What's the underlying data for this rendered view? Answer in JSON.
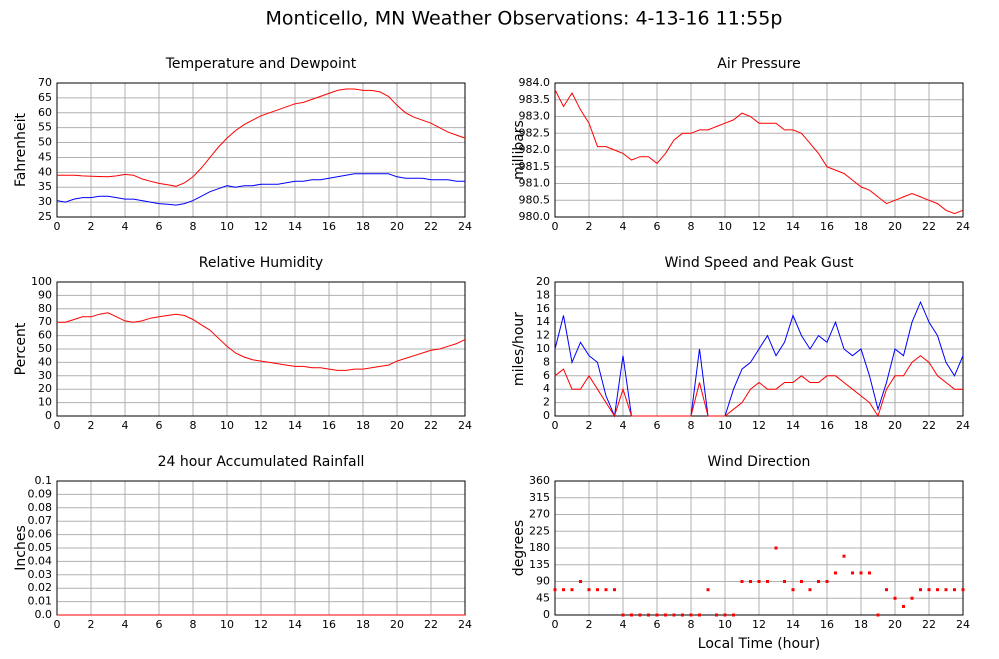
{
  "title": "Monticello, MN Weather Observations: 4-13-16 11:55p",
  "chart_data": [
    {
      "type": "line",
      "title": "Temperature and Dewpoint",
      "ylabel": "Fahrenheit",
      "x": [
        0,
        0.5,
        1,
        1.5,
        2,
        2.5,
        3,
        3.5,
        4,
        4.5,
        5,
        5.5,
        6,
        6.5,
        7,
        7.5,
        8,
        8.5,
        9,
        9.5,
        10,
        10.5,
        11,
        11.5,
        12,
        12.5,
        13,
        13.5,
        14,
        14.5,
        15,
        15.5,
        16,
        16.5,
        17,
        17.5,
        18,
        18.5,
        19,
        19.5,
        20,
        20.5,
        21,
        21.5,
        22,
        22.5,
        23,
        23.5,
        24
      ],
      "series": [
        {
          "color": "#ff0000",
          "values": [
            39,
            39,
            39,
            38.8,
            38.7,
            38.6,
            38.5,
            38.8,
            39.3,
            39,
            37.8,
            37,
            36.3,
            35.8,
            35.3,
            36.5,
            38.5,
            41.5,
            45,
            48.5,
            51.5,
            54,
            56,
            57.5,
            59,
            60,
            61,
            62,
            63,
            63.5,
            64.5,
            65.5,
            66.5,
            67.5,
            68,
            68,
            67.5,
            67.5,
            67,
            65.5,
            62.5,
            60,
            58.5,
            57.5,
            56.5,
            55,
            53.5,
            52.5,
            51.5
          ]
        },
        {
          "color": "#0000ff",
          "values": [
            30.5,
            30,
            31,
            31.5,
            31.5,
            32,
            32,
            31.5,
            31,
            31,
            30.5,
            30,
            29.5,
            29.3,
            29,
            29.5,
            30.5,
            32,
            33.5,
            34.5,
            35.5,
            35,
            35.5,
            35.5,
            36,
            36,
            36,
            36.5,
            37,
            37,
            37.5,
            37.5,
            38,
            38.5,
            39,
            39.5,
            39.5,
            39.5,
            39.5,
            39.5,
            38.5,
            38,
            38,
            38,
            37.5,
            37.5,
            37.5,
            37,
            37
          ]
        }
      ],
      "xlim": [
        0,
        24
      ],
      "xticks": [
        0,
        2,
        4,
        6,
        8,
        10,
        12,
        14,
        16,
        18,
        20,
        22,
        24
      ],
      "ylim": [
        25,
        70
      ],
      "yticks": [
        25,
        30,
        35,
        40,
        45,
        50,
        55,
        60,
        65,
        70
      ],
      "grid": true
    },
    {
      "type": "line",
      "title": "Air Pressure",
      "ylabel": "millibars",
      "x": [
        0,
        0.5,
        1,
        1.5,
        2,
        2.5,
        3,
        3.5,
        4,
        4.5,
        5,
        5.5,
        6,
        6.5,
        7,
        7.5,
        8,
        8.5,
        9,
        9.5,
        10,
        10.5,
        11,
        11.5,
        12,
        12.5,
        13,
        13.5,
        14,
        14.5,
        15,
        15.5,
        16,
        16.5,
        17,
        17.5,
        18,
        18.5,
        19,
        19.5,
        20,
        20.5,
        21,
        21.5,
        22,
        22.5,
        23,
        23.5,
        24
      ],
      "series": [
        {
          "color": "#ff0000",
          "values": [
            983.8,
            983.3,
            983.7,
            983.2,
            982.8,
            982.1,
            982.1,
            982.0,
            981.9,
            981.7,
            981.8,
            981.8,
            981.6,
            981.9,
            982.3,
            982.5,
            982.5,
            982.6,
            982.6,
            982.7,
            982.8,
            982.9,
            983.1,
            983.0,
            982.8,
            982.8,
            982.8,
            982.6,
            982.6,
            982.5,
            982.2,
            981.9,
            981.5,
            981.4,
            981.3,
            981.1,
            980.9,
            980.8,
            980.6,
            980.4,
            980.5,
            980.6,
            980.7,
            980.6,
            980.5,
            980.4,
            980.2,
            980.1,
            980.2
          ]
        }
      ],
      "xlim": [
        0,
        24
      ],
      "xticks": [
        0,
        2,
        4,
        6,
        8,
        10,
        12,
        14,
        16,
        18,
        20,
        22,
        24
      ],
      "ylim": [
        980,
        984
      ],
      "yticks": [
        {
          "value": 980,
          "label": "980.0"
        },
        980.5,
        {
          "value": 981,
          "label": "981.0"
        },
        981.5,
        {
          "value": 982,
          "label": "982.0"
        },
        982.5,
        {
          "value": 983,
          "label": "983.0"
        },
        983.5,
        {
          "value": 984,
          "label": "984.0"
        }
      ],
      "grid": true
    },
    {
      "type": "line",
      "title": "Relative Humidity",
      "ylabel": "Percent",
      "x": [
        0,
        0.5,
        1,
        1.5,
        2,
        2.5,
        3,
        3.5,
        4,
        4.5,
        5,
        5.5,
        6,
        6.5,
        7,
        7.5,
        8,
        8.5,
        9,
        9.5,
        10,
        10.5,
        11,
        11.5,
        12,
        12.5,
        13,
        13.5,
        14,
        14.5,
        15,
        15.5,
        16,
        16.5,
        17,
        17.5,
        18,
        18.5,
        19,
        19.5,
        20,
        20.5,
        21,
        21.5,
        22,
        22.5,
        23,
        23.5,
        24
      ],
      "series": [
        {
          "color": "#ff0000",
          "values": [
            70,
            70,
            72,
            74,
            74,
            76,
            77,
            74,
            71,
            70,
            71,
            73,
            74,
            75,
            76,
            75,
            72,
            68,
            64,
            58,
            52,
            47,
            44,
            42,
            41,
            40,
            39,
            38,
            37,
            37,
            36,
            36,
            35,
            34,
            34,
            35,
            35,
            36,
            37,
            38,
            41,
            43,
            45,
            47,
            49,
            50,
            52,
            54,
            57
          ]
        }
      ],
      "xlim": [
        0,
        24
      ],
      "xticks": [
        0,
        2,
        4,
        6,
        8,
        10,
        12,
        14,
        16,
        18,
        20,
        22,
        24
      ],
      "ylim": [
        0,
        100
      ],
      "yticks": [
        0,
        10,
        20,
        30,
        40,
        50,
        60,
        70,
        80,
        90,
        100
      ],
      "grid": true
    },
    {
      "type": "line",
      "title": "Wind Speed and Peak Gust",
      "ylabel": "miles/hour",
      "x": [
        0,
        0.5,
        1,
        1.5,
        2,
        2.5,
        3,
        3.5,
        4,
        4.5,
        5,
        5.5,
        6,
        6.5,
        7,
        7.5,
        8,
        8.5,
        9,
        9.5,
        10,
        10.5,
        11,
        11.5,
        12,
        12.5,
        13,
        13.5,
        14,
        14.5,
        15,
        15.5,
        16,
        16.5,
        17,
        17.5,
        18,
        18.5,
        19,
        19.5,
        20,
        20.5,
        21,
        21.5,
        22,
        22.5,
        23,
        23.5,
        24
      ],
      "series": [
        {
          "color": "#0000ff",
          "values": [
            10,
            15,
            8,
            11,
            9,
            8,
            3,
            0,
            9,
            0,
            0,
            0,
            0,
            0,
            0,
            0,
            0,
            10,
            0,
            0,
            0,
            4,
            7,
            8,
            10,
            12,
            9,
            11,
            15,
            12,
            10,
            12,
            11,
            14,
            10,
            9,
            10,
            6,
            1,
            5,
            10,
            9,
            14,
            17,
            14,
            12,
            8,
            6,
            9
          ]
        },
        {
          "color": "#ff0000",
          "values": [
            6,
            7,
            4,
            4,
            6,
            4,
            2,
            0,
            4,
            0,
            0,
            0,
            0,
            0,
            0,
            0,
            0,
            5,
            0,
            0,
            0,
            1,
            2,
            4,
            5,
            4,
            4,
            5,
            5,
            6,
            5,
            5,
            6,
            6,
            5,
            4,
            3,
            2,
            0,
            4,
            6,
            6,
            8,
            9,
            8,
            6,
            5,
            4,
            4
          ]
        }
      ],
      "xlim": [
        0,
        24
      ],
      "xticks": [
        0,
        2,
        4,
        6,
        8,
        10,
        12,
        14,
        16,
        18,
        20,
        22,
        24
      ],
      "ylim": [
        0,
        20
      ],
      "yticks": [
        0,
        2,
        4,
        6,
        8,
        10,
        12,
        14,
        16,
        18,
        20
      ],
      "grid": true
    },
    {
      "type": "line",
      "title": "24 hour Accumulated Rainfall",
      "ylabel": "Inches",
      "x": [
        0,
        24
      ],
      "series": [
        {
          "color": "#ff0000",
          "values": [
            0,
            0
          ]
        }
      ],
      "xlim": [
        0,
        24
      ],
      "xticks": [
        0,
        2,
        4,
        6,
        8,
        10,
        12,
        14,
        16,
        18,
        20,
        22,
        24
      ],
      "ylim": [
        0,
        0.1
      ],
      "yticks": [
        {
          "value": 0,
          "label": "0.0"
        },
        0.01,
        0.02,
        0.03,
        0.04,
        0.05,
        0.06,
        0.07,
        0.08,
        0.09,
        0.1
      ],
      "grid": true
    },
    {
      "type": "scatter",
      "title": "Wind Direction",
      "ylabel": "degrees",
      "xlabel": "Local Time (hour)",
      "x": [
        0,
        0.5,
        1,
        1.5,
        2,
        2.5,
        3,
        3.5,
        4,
        4.5,
        5,
        5.5,
        6,
        6.5,
        7,
        7.5,
        8,
        8.5,
        9,
        9.5,
        10,
        10.5,
        11,
        11.5,
        12,
        12.5,
        13,
        13.5,
        14,
        14.5,
        15,
        15.5,
        16,
        16.5,
        17,
        17.5,
        18,
        18.5,
        19,
        19.5,
        20,
        20.5,
        21,
        21.5,
        22,
        22.5,
        23,
        23.5,
        24
      ],
      "series": [
        {
          "color": "#ff0000",
          "values": [
            68,
            68,
            68,
            90,
            68,
            68,
            68,
            68,
            0,
            0,
            0,
            0,
            0,
            0,
            0,
            0,
            0,
            0,
            68,
            0,
            0,
            0,
            90,
            90,
            90,
            90,
            180,
            90,
            68,
            90,
            68,
            90,
            90,
            113,
            158,
            113,
            113,
            113,
            0,
            68,
            45,
            23,
            45,
            68,
            68,
            68,
            68,
            68,
            68
          ]
        }
      ],
      "xlim": [
        0,
        24
      ],
      "xticks": [
        0,
        2,
        4,
        6,
        8,
        10,
        12,
        14,
        16,
        18,
        20,
        22,
        24
      ],
      "ylim": [
        0,
        360
      ],
      "yticks": [
        0,
        45,
        90,
        135,
        180,
        225,
        270,
        315,
        360
      ],
      "grid": true
    }
  ]
}
